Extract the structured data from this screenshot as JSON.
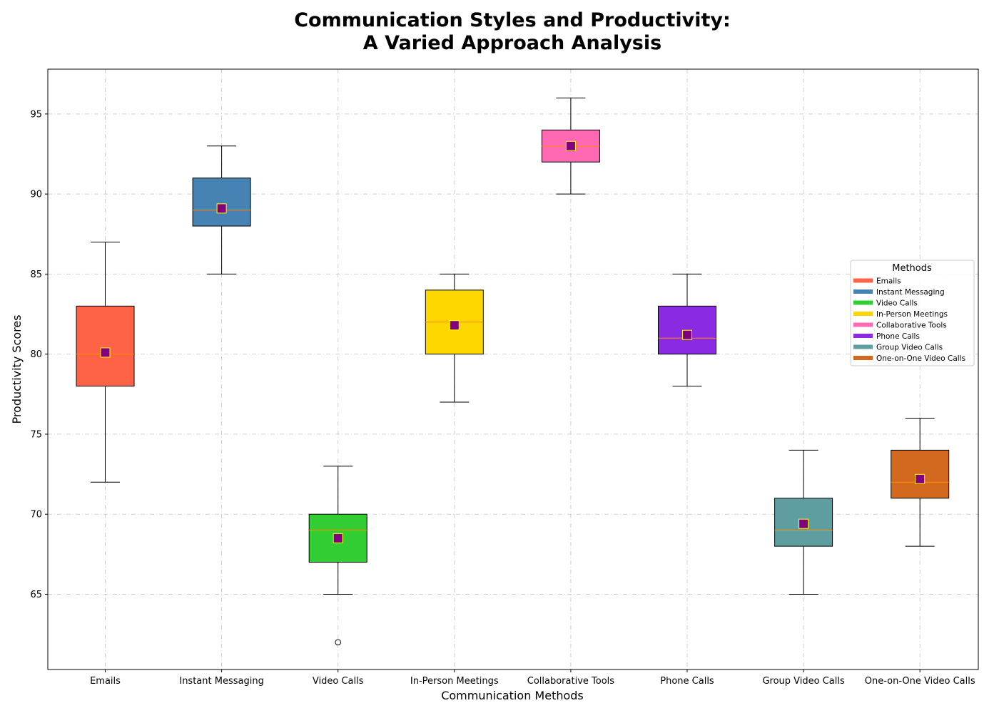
{
  "chart_data": {
    "type": "box",
    "title": [
      "Communication Styles and Productivity:",
      "A Varied Approach Analysis"
    ],
    "xlabel": "Communication Methods",
    "ylabel": "Productivity Scores",
    "ylim": [
      60.3,
      97.8
    ],
    "yticks": [
      65,
      70,
      75,
      80,
      85,
      90,
      95
    ],
    "grid": true,
    "legend": {
      "title": "Methods",
      "position": "right"
    },
    "categories": [
      "Emails",
      "Instant Messaging",
      "Video Calls",
      "In-Person Meetings",
      "Collaborative Tools",
      "Phone Calls",
      "Group Video Calls",
      "One-on-One Video Calls"
    ],
    "colors": [
      "#FF6347",
      "#4682B4",
      "#32CD32",
      "#FFD700",
      "#FF69B4",
      "#8A2BE2",
      "#5F9EA0",
      "#D2691E"
    ],
    "median_color": "#FF8C00",
    "mean_marker_color": "#800080",
    "mean_marker_edge": "#FFFF00",
    "series": [
      {
        "name": "Emails",
        "whisker_low": 72,
        "q1": 78,
        "median": 80,
        "q3": 83,
        "whisker_high": 87,
        "mean": 80.1,
        "outliers": []
      },
      {
        "name": "Instant Messaging",
        "whisker_low": 85,
        "q1": 88,
        "median": 89,
        "q3": 91,
        "whisker_high": 93,
        "mean": 89.1,
        "outliers": []
      },
      {
        "name": "Video Calls",
        "whisker_low": 65,
        "q1": 67,
        "median": 69,
        "q3": 70,
        "whisker_high": 73,
        "mean": 68.5,
        "outliers": [
          62
        ]
      },
      {
        "name": "In-Person Meetings",
        "whisker_low": 77,
        "q1": 80,
        "median": 82,
        "q3": 84,
        "whisker_high": 85,
        "mean": 81.8,
        "outliers": []
      },
      {
        "name": "Collaborative Tools",
        "whisker_low": 90,
        "q1": 92,
        "median": 93,
        "q3": 94,
        "whisker_high": 96,
        "mean": 93.0,
        "outliers": []
      },
      {
        "name": "Phone Calls",
        "whisker_low": 78,
        "q1": 80,
        "median": 81,
        "q3": 83,
        "whisker_high": 85,
        "mean": 81.2,
        "outliers": []
      },
      {
        "name": "Group Video Calls",
        "whisker_low": 65,
        "q1": 68,
        "median": 69,
        "q3": 71,
        "whisker_high": 74,
        "mean": 69.4,
        "outliers": []
      },
      {
        "name": "One-on-One Video Calls",
        "whisker_low": 68,
        "q1": 71,
        "median": 72,
        "q3": 74,
        "whisker_high": 76,
        "mean": 72.2,
        "outliers": []
      }
    ]
  }
}
